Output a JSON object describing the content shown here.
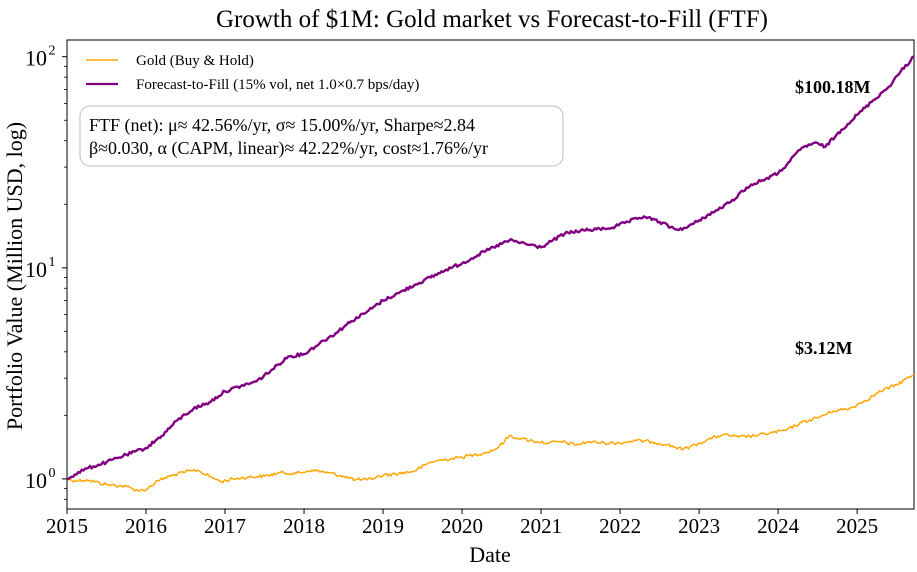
{
  "chart_data": {
    "type": "line",
    "title": "Growth of $1M: Gold market vs Forecast-to-Fill (FTF)",
    "xlabel": "Date",
    "ylabel": "Portfolio Value (Million USD, log)",
    "y_scale": "log",
    "xlim": [
      2015.0,
      2025.72
    ],
    "ylim": [
      0.72,
      120
    ],
    "x_ticks": [
      2015,
      2016,
      2017,
      2018,
      2019,
      2020,
      2021,
      2022,
      2023,
      2024,
      2025
    ],
    "x_tick_labels": [
      "2015",
      "2016",
      "2017",
      "2018",
      "2019",
      "2020",
      "2021",
      "2022",
      "2023",
      "2024",
      "2025"
    ],
    "y_ticks": [
      1,
      10,
      100
    ],
    "y_tick_labels": [
      {
        "base": "10",
        "exp": "0"
      },
      {
        "base": "10",
        "exp": "1"
      },
      {
        "base": "10",
        "exp": "2"
      }
    ],
    "grid": false,
    "legend_position": "upper-left",
    "series": [
      {
        "name": "Gold (Buy & Hold)",
        "color": "#FFA500",
        "x": [
          2015.0,
          2015.1,
          2015.25,
          2015.5,
          2015.75,
          2015.9,
          2016.0,
          2016.15,
          2016.3,
          2016.5,
          2016.65,
          2016.8,
          2016.95,
          2017.1,
          2017.3,
          2017.5,
          2017.7,
          2017.9,
          2018.1,
          2018.3,
          2018.5,
          2018.65,
          2018.8,
          2019.0,
          2019.2,
          2019.4,
          2019.6,
          2019.75,
          2019.95,
          2020.15,
          2020.3,
          2020.45,
          2020.6,
          2020.75,
          2020.95,
          2021.1,
          2021.25,
          2021.45,
          2021.6,
          2021.8,
          2022.0,
          2022.2,
          2022.4,
          2022.6,
          2022.8,
          2022.95,
          2023.1,
          2023.3,
          2023.5,
          2023.7,
          2023.9,
          2024.1,
          2024.3,
          2024.5,
          2024.7,
          2024.9,
          2025.1,
          2025.3,
          2025.5,
          2025.72
        ],
        "values": [
          1.0,
          0.98,
          0.99,
          0.94,
          0.92,
          0.88,
          0.89,
          0.98,
          1.03,
          1.08,
          1.1,
          1.03,
          0.97,
          1.0,
          1.02,
          1.03,
          1.07,
          1.06,
          1.1,
          1.07,
          1.03,
          0.99,
          0.99,
          1.04,
          1.06,
          1.09,
          1.2,
          1.23,
          1.26,
          1.3,
          1.33,
          1.4,
          1.6,
          1.55,
          1.5,
          1.48,
          1.5,
          1.45,
          1.5,
          1.48,
          1.48,
          1.52,
          1.5,
          1.45,
          1.38,
          1.45,
          1.53,
          1.62,
          1.58,
          1.6,
          1.65,
          1.7,
          1.85,
          1.95,
          2.1,
          2.15,
          2.35,
          2.6,
          2.8,
          3.12
        ]
      },
      {
        "name": "Forecast-to-Fill (15% vol, net 1.0×0.7 bps/day)",
        "color": "#800080",
        "x": [
          2015.0,
          2015.1,
          2015.25,
          2015.5,
          2015.75,
          2016.0,
          2016.2,
          2016.4,
          2016.6,
          2016.8,
          2017.0,
          2017.2,
          2017.4,
          2017.6,
          2017.8,
          2018.0,
          2018.2,
          2018.4,
          2018.6,
          2018.8,
          2019.0,
          2019.2,
          2019.4,
          2019.6,
          2019.8,
          2020.0,
          2020.2,
          2020.4,
          2020.6,
          2020.8,
          2021.0,
          2021.15,
          2021.3,
          2021.5,
          2021.7,
          2021.9,
          2022.1,
          2022.3,
          2022.5,
          2022.7,
          2022.85,
          2023.0,
          2023.2,
          2023.4,
          2023.6,
          2023.8,
          2024.0,
          2024.15,
          2024.3,
          2024.45,
          2024.6,
          2024.8,
          2025.0,
          2025.2,
          2025.4,
          2025.55,
          2025.72
        ],
        "values": [
          1.0,
          1.05,
          1.12,
          1.2,
          1.3,
          1.4,
          1.6,
          1.9,
          2.15,
          2.3,
          2.6,
          2.75,
          2.9,
          3.3,
          3.8,
          3.9,
          4.4,
          4.9,
          5.6,
          6.2,
          7.0,
          7.6,
          8.3,
          9.0,
          9.8,
          10.5,
          11.5,
          12.5,
          13.5,
          13.0,
          12.5,
          13.5,
          14.5,
          15.0,
          15.2,
          15.5,
          16.5,
          17.5,
          16.5,
          15.2,
          15.5,
          16.8,
          18.5,
          20.5,
          24.0,
          26.0,
          28.0,
          32.0,
          37.0,
          39.0,
          37.5,
          45.0,
          53.0,
          62.0,
          72.0,
          85.0,
          100.18
        ]
      }
    ],
    "end_labels": [
      {
        "series": 1,
        "text": "$100.18M",
        "color": "#800080"
      },
      {
        "series": 0,
        "text": "$3.12M",
        "color": "#FFA500"
      }
    ],
    "annotation": {
      "line1": "FTF (net): μ≈ 42.56%/yr, σ≈ 15.00%/yr, Sharpe≈2.84",
      "line2": "β≈0.030, α (CAPM, linear)≈ 42.22%/yr, cost≈1.76%/yr"
    }
  }
}
